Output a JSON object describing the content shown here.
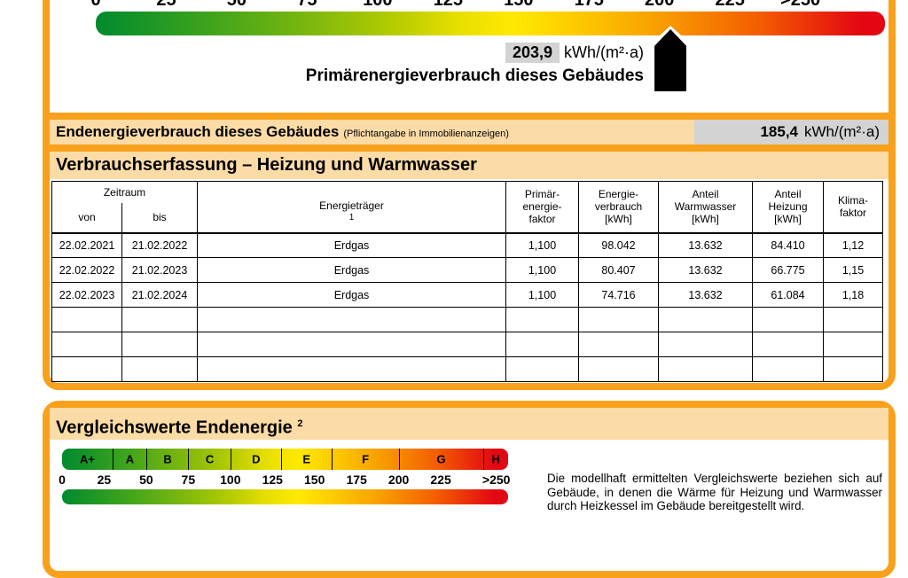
{
  "colors": {
    "frame_orange": "#F9A11B",
    "band_peach": "#FBDBA6",
    "value_chip_gray": "#D3D3D3",
    "scale_green": "#008A2E",
    "scale_yellow": "#FFE900",
    "scale_red": "#E30613",
    "marker_black": "#000000"
  },
  "primary_scale": {
    "max": 280,
    "ticks": [
      {
        "label": "0",
        "v": 0
      },
      {
        "label": "25",
        "v": 25
      },
      {
        "label": "50",
        "v": 50
      },
      {
        "label": "75",
        "v": 75
      },
      {
        "label": "100",
        "v": 100
      },
      {
        "label": "125",
        "v": 125
      },
      {
        "label": "150",
        "v": 150
      },
      {
        "label": "175",
        "v": 175
      },
      {
        "label": "200",
        "v": 200
      },
      {
        "label": "225",
        "v": 225
      },
      {
        "label": ">250",
        "v": 250
      }
    ],
    "marker_value": 203.9,
    "value_label": "203,9",
    "unit": "kWh/(m²·a)",
    "caption": "Primärenergieverbrauch dieses Gebäudes"
  },
  "endenergie_row": {
    "label": "Endenergieverbrauch dieses Gebäudes",
    "note": "(Pflichtangabe in Immobilienanzeigen)",
    "value": "185,4",
    "unit": "kWh/(m²·a)"
  },
  "consumption": {
    "title": "Verbrauchserfassung – Heizung und Warmwasser",
    "header": {
      "zeitraum": "Zeitraum",
      "von": "von",
      "bis": "bis",
      "energietraeger": "Energieträger",
      "energietraeger_sup": "1",
      "pef": "Primär-\nenergie-\nfaktor",
      "verbrauch": "Energie-\nverbrauch\n[kWh]",
      "warmwasser": "Anteil\nWarmwasser\n[kWh]",
      "heizung": "Anteil\nHeizung\n[kWh]",
      "klima": "Klima-\nfaktor"
    },
    "rows": [
      [
        "22.02.2021",
        "21.02.2022",
        "Erdgas",
        "1,100",
        "98.042",
        "13.632",
        "84.410",
        "1,12"
      ],
      [
        "22.02.2022",
        "21.02.2023",
        "Erdgas",
        "1,100",
        "80.407",
        "13.632",
        "66.775",
        "1,15"
      ],
      [
        "22.02.2023",
        "21.02.2024",
        "Erdgas",
        "1,100",
        "74.716",
        "13.632",
        "61.084",
        "1,18"
      ]
    ],
    "empty_rows": 3
  },
  "comparison": {
    "title": "Vergleichswerte Endenergie",
    "title_sup": "2",
    "max": 265,
    "classes": [
      {
        "label": "A+",
        "from": 0,
        "to": 30
      },
      {
        "label": "A",
        "from": 30,
        "to": 50
      },
      {
        "label": "B",
        "from": 50,
        "to": 75
      },
      {
        "label": "C",
        "from": 75,
        "to": 100
      },
      {
        "label": "D",
        "from": 100,
        "to": 130
      },
      {
        "label": "E",
        "from": 130,
        "to": 160
      },
      {
        "label": "F",
        "from": 160,
        "to": 200
      },
      {
        "label": "G",
        "from": 200,
        "to": 250
      },
      {
        "label": "H",
        "from": 250,
        "to": 265
      }
    ],
    "ticks": [
      {
        "label": "0",
        "v": 0
      },
      {
        "label": "25",
        "v": 25
      },
      {
        "label": "50",
        "v": 50
      },
      {
        "label": "75",
        "v": 75
      },
      {
        "label": "100",
        "v": 100
      },
      {
        "label": "125",
        "v": 125
      },
      {
        "label": "150",
        "v": 150
      },
      {
        "label": "175",
        "v": 175
      },
      {
        "label": "200",
        "v": 200
      },
      {
        "label": "225",
        "v": 225
      },
      {
        "label": ">250",
        "v": 258
      }
    ],
    "info_text": "Die modellhaft ermittelten Vergleichswerte beziehen sich auf Gebäude, in denen die Wärme für Heizung und Warmwasser durch Heizkessel im Gebäude bereitgestellt wird."
  }
}
